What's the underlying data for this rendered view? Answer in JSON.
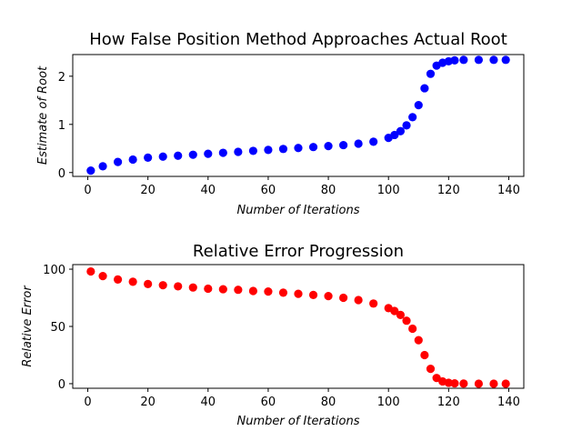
{
  "colors": {
    "root_series": "#0000ff",
    "error_series": "#ff0000",
    "axes": "#000000"
  },
  "chart_data": [
    {
      "type": "scatter",
      "title": "How False Position Method Approaches Actual Root",
      "xlabel": "Number of Iterations",
      "ylabel": "Estimate of Root",
      "xlim": [
        -5,
        145
      ],
      "ylim": [
        -0.08,
        2.45
      ],
      "xticks": [
        "0",
        "20",
        "40",
        "60",
        "80",
        "100",
        "120",
        "140"
      ],
      "yticks": [
        "0",
        "1",
        "2"
      ],
      "grid": false,
      "color": "#0000ff",
      "x": [
        1,
        5,
        10,
        15,
        20,
        25,
        30,
        35,
        40,
        45,
        50,
        55,
        60,
        65,
        70,
        75,
        80,
        85,
        90,
        95,
        100,
        102,
        104,
        106,
        108,
        110,
        112,
        114,
        116,
        118,
        120,
        122,
        125,
        130,
        135,
        139
      ],
      "y": [
        0.04,
        0.13,
        0.22,
        0.27,
        0.31,
        0.33,
        0.35,
        0.37,
        0.39,
        0.41,
        0.43,
        0.45,
        0.47,
        0.49,
        0.51,
        0.53,
        0.55,
        0.57,
        0.6,
        0.64,
        0.72,
        0.78,
        0.86,
        0.98,
        1.15,
        1.4,
        1.75,
        2.05,
        2.22,
        2.28,
        2.31,
        2.33,
        2.34,
        2.34,
        2.34,
        2.34
      ]
    },
    {
      "type": "scatter",
      "title": "Relative Error Progression",
      "xlabel": "Number of Iterations",
      "ylabel": "Relative Error",
      "xlim": [
        -5,
        145
      ],
      "ylim": [
        -4,
        104
      ],
      "xticks": [
        "0",
        "20",
        "40",
        "60",
        "80",
        "100",
        "120",
        "140"
      ],
      "yticks": [
        "0",
        "50",
        "100"
      ],
      "grid": false,
      "color": "#ff0000",
      "x": [
        1,
        5,
        10,
        15,
        20,
        25,
        30,
        35,
        40,
        45,
        50,
        55,
        60,
        65,
        70,
        75,
        80,
        85,
        90,
        95,
        100,
        102,
        104,
        106,
        108,
        110,
        112,
        114,
        116,
        118,
        120,
        122,
        125,
        130,
        135,
        139
      ],
      "y": [
        98,
        94,
        91,
        89,
        87,
        86,
        85,
        84,
        83,
        82.5,
        82,
        81,
        80.5,
        79.5,
        78.5,
        77.5,
        76.5,
        75,
        73,
        70,
        66,
        63.5,
        60,
        55,
        48,
        38,
        25,
        13,
        5,
        2,
        0.8,
        0.3,
        0.1,
        0,
        0,
        0
      ]
    }
  ]
}
